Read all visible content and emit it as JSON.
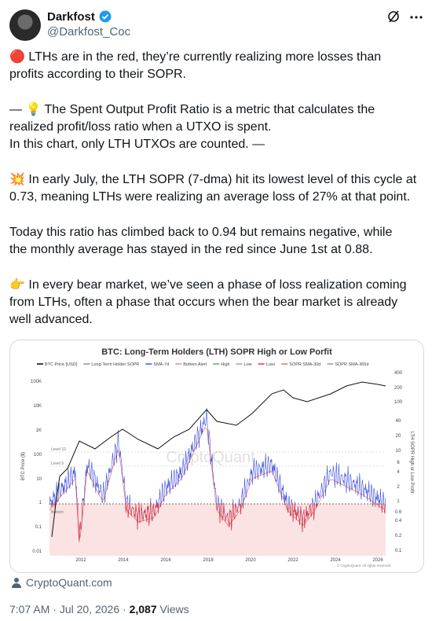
{
  "author": {
    "name": "Darkfost",
    "handle": "@Darkfost_Coc"
  },
  "post": {
    "paragraphs": [
      [
        "🔴 LTHs are in the red, they’re currently realizing more losses than",
        "profits according to their SOPR."
      ],
      [
        "— 💡 The Spent Output Profit Ratio is a metric that calculates the",
        "realized profit/loss ratio when a UTXO is spent.",
        "In this chart, only LTH UTXOs are counted. —"
      ],
      [
        "💥 In early July, the LTH SOPR (7-dma) hit its lowest level of this cycle at",
        "0.73, meaning LTHs were realizing an average loss of 27% at that point."
      ],
      [
        "Today this ratio has climbed back to 0.94 but remains negative, while",
        "the monthly average has stayed in the red since June 1st at 0.88."
      ],
      [
        "👉 In every bear market, we’ve seen a phase of loss realization coming",
        "from LTHs, often a phase that occurs when the bear market is already",
        "well advanced."
      ]
    ]
  },
  "media": {
    "title": "BTC: Long-Term Holders (LTH) SOPR High or Low Porfit",
    "legend": [
      "BTC Price [USD]",
      "Long-Term Holder SOPR",
      "SMA-7d",
      "Bottom Alert",
      "High",
      "Low",
      "Loss",
      "SOPR SMA-30d",
      "SOPR SMA-365d"
    ],
    "y_left_title": "BTC Price ($)",
    "y_right_title": "LTH SOPR High or Low Profit",
    "y_left_labels": [
      "100K",
      "10K",
      "1K",
      "100",
      "10",
      "1",
      "0.1",
      "0.01"
    ],
    "y_right_labels": [
      "400",
      "200",
      "100",
      "40",
      "20",
      "10",
      "6",
      "4",
      "2",
      "1",
      "0.6",
      "0.4",
      "0.2",
      "0.1"
    ],
    "x_labels": [
      "2012",
      "2014",
      "2016",
      "2018",
      "2020",
      "2022",
      "2024",
      "2026"
    ],
    "annotations": [
      "Level 10",
      "Level 5",
      "Bottom"
    ],
    "watermark": "CryptoQuant",
    "copyright": "© CryptoQuant. All rights reserved"
  },
  "source": "CryptoQuant.com",
  "meta": {
    "time": "7:07 AM",
    "separator": "·",
    "date": "Jul 20, 2026",
    "views_count": "2,087",
    "views_label": "Views"
  }
}
